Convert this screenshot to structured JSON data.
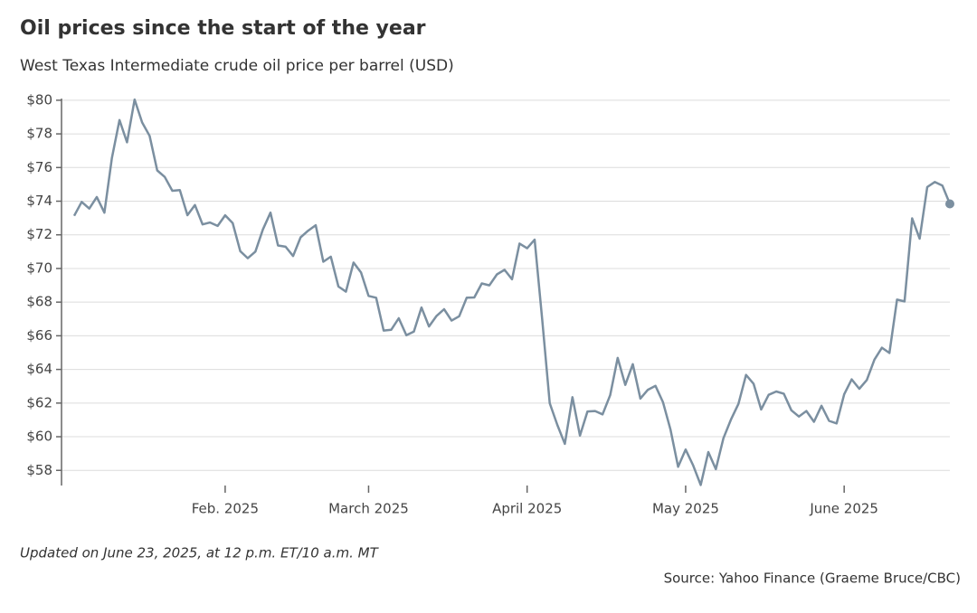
{
  "chart_data": {
    "type": "line",
    "title": "Oil prices since the start of the year",
    "subtitle": "West Texas Intermediate crude oil price per barrel (USD)",
    "note": "Updated on June 23, 2025, at 12 p.m. ET/10 a.m. MT",
    "source": "Source: Yahoo Finance (Graeme Bruce/CBC)",
    "color": "#7b8fa0",
    "grid": true,
    "categories": [
      null,
      null,
      null,
      null,
      null,
      null,
      null,
      null,
      null,
      null,
      null,
      null,
      null,
      null,
      null,
      null,
      null,
      null,
      null,
      null,
      "Feb. 2025",
      null,
      null,
      null,
      null,
      null,
      null,
      null,
      null,
      null,
      null,
      null,
      null,
      null,
      null,
      null,
      null,
      null,
      null,
      "March 2025",
      null,
      null,
      null,
      null,
      null,
      null,
      null,
      null,
      null,
      null,
      null,
      null,
      null,
      null,
      null,
      null,
      null,
      null,
      null,
      null,
      "April 2025",
      null,
      null,
      null,
      null,
      null,
      null,
      null,
      null,
      null,
      null,
      null,
      null,
      null,
      null,
      null,
      null,
      null,
      null,
      null,
      null,
      "May 2025",
      null,
      null,
      null,
      null,
      null,
      null,
      null,
      null,
      null,
      null,
      null,
      null,
      null,
      null,
      null,
      null,
      null,
      null,
      null,
      null,
      "June 2025",
      null,
      null,
      null,
      null,
      null,
      null,
      null,
      null,
      null,
      null,
      null,
      null,
      null,
      null
    ],
    "values": [
      73.13,
      73.96,
      73.56,
      74.25,
      73.32,
      76.57,
      78.82,
      77.5,
      80.04,
      78.68,
      77.88,
      75.83,
      75.44,
      74.62,
      74.66,
      73.17,
      73.77,
      72.62,
      72.73,
      72.53,
      73.16,
      72.7,
      71.03,
      70.61,
      71.0,
      72.32,
      73.32,
      71.37,
      71.29,
      70.74,
      71.85,
      72.25,
      72.57,
      70.4,
      70.7,
      68.93,
      68.62,
      70.35,
      69.76,
      68.37,
      68.26,
      66.31,
      66.36,
      67.04,
      66.03,
      66.25,
      67.68,
      66.55,
      67.18,
      67.58,
      66.9,
      67.16,
      68.26,
      68.28,
      69.11,
      69.0,
      69.65,
      69.92,
      69.36,
      71.48,
      71.2,
      71.71,
      66.95,
      61.99,
      60.7,
      59.58,
      62.35,
      60.07,
      61.5,
      61.53,
      61.33,
      62.47,
      64.68,
      63.08,
      64.31,
      62.27,
      62.79,
      63.02,
      62.05,
      60.42,
      58.21,
      59.24,
      58.29,
      57.13,
      59.09,
      58.07,
      59.91,
      61.02,
      61.95,
      63.67,
      63.15,
      61.62,
      62.49,
      62.69,
      62.56,
      61.57,
      61.2,
      61.53,
      60.89,
      61.84,
      60.94,
      60.79,
      62.52,
      63.41,
      62.85,
      63.37,
      64.58,
      65.29,
      64.98,
      68.15,
      68.04,
      72.98,
      71.77,
      74.84,
      75.14,
      74.93,
      73.84
    ],
    "ylim": [
      57.1,
      80.1
    ],
    "yticks": [
      {
        "value": 58,
        "label": "$58"
      },
      {
        "value": 60,
        "label": "$60"
      },
      {
        "value": 62,
        "label": "$62"
      },
      {
        "value": 64,
        "label": "$64"
      },
      {
        "value": 66,
        "label": "$66"
      },
      {
        "value": 68,
        "label": "$68"
      },
      {
        "value": 70,
        "label": "$70"
      },
      {
        "value": 72,
        "label": "$72"
      },
      {
        "value": 74,
        "label": "$74"
      },
      {
        "value": 76,
        "label": "$76"
      },
      {
        "value": 78,
        "label": "$78"
      },
      {
        "value": 80,
        "label": "$80"
      }
    ]
  }
}
